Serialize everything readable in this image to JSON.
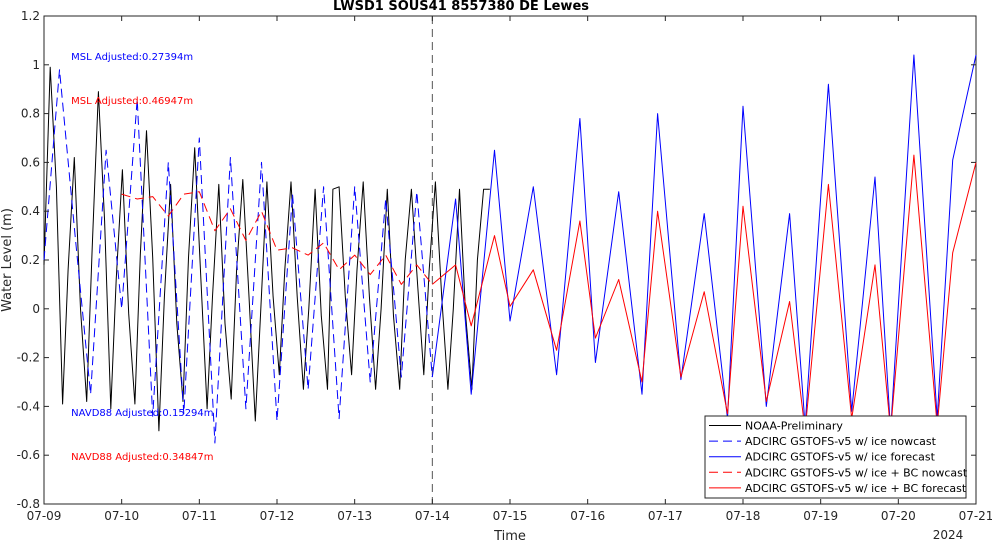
{
  "chart_data": {
    "type": "line",
    "title": "LWSD1 SOUS41 8557380 DE Lewes",
    "xlabel": "Time",
    "ylabel": "Water Level (m)",
    "xlim": [
      0,
      12
    ],
    "ylim": [
      -0.8,
      1.2
    ],
    "x_ticks": [
      0,
      1,
      2,
      3,
      4,
      5,
      6,
      7,
      8,
      9,
      10,
      11,
      12
    ],
    "x_tick_labels": [
      "07-09",
      "07-10",
      "07-11",
      "07-12",
      "07-13",
      "07-14",
      "07-15",
      "07-16",
      "07-17",
      "07-18",
      "07-19",
      "07-20",
      "07-21"
    ],
    "x_year_label": "2024",
    "y_ticks": [
      -0.8,
      -0.6,
      -0.4,
      -0.2,
      0,
      0.2,
      0.4,
      0.6,
      0.8,
      1,
      1.2
    ],
    "y_tick_labels": [
      "-0.8",
      "-0.6",
      "-0.4",
      "-0.2",
      "0",
      "0.2",
      "0.4",
      "0.6",
      "0.8",
      "1",
      "1.2"
    ],
    "nowcast_forecast_split_x": 5,
    "annotations": [
      {
        "text": "MSL Adjusted:0.27394m",
        "color": "#0000ff",
        "x": 0.35,
        "y": 1.02
      },
      {
        "text": "MSL Adjusted:0.46947m",
        "color": "#ff0000",
        "x": 0.35,
        "y": 0.84
      },
      {
        "text": "NAVD88 Adjusted:0.15294m",
        "color": "#0000ff",
        "x": 0.35,
        "y": -0.44
      },
      {
        "text": "NAVD88 Adjusted:0.34847m",
        "color": "#ff0000",
        "x": 0.35,
        "y": -0.62
      }
    ],
    "legend_position": "bottom-right",
    "series": [
      {
        "name": "NOAA-Preliminary",
        "color": "#000000",
        "style": "solid",
        "x": [
          0.0,
          0.08,
          0.16,
          0.24,
          0.31,
          0.39,
          0.47,
          0.55,
          0.62,
          0.7,
          0.78,
          0.86,
          0.93,
          1.01,
          1.09,
          1.17,
          1.24,
          1.32,
          1.4,
          1.48,
          1.55,
          1.63,
          1.71,
          1.79,
          1.86,
          1.94,
          2.02,
          2.1,
          2.17,
          2.25,
          2.33,
          2.41,
          2.48,
          2.56,
          2.64,
          2.72,
          2.79,
          2.87,
          2.95,
          3.03,
          3.1,
          3.18,
          3.26,
          3.34,
          3.41,
          3.49,
          3.57,
          3.65,
          3.72,
          3.8,
          3.88,
          3.96,
          4.03,
          4.11,
          4.19,
          4.27,
          4.34,
          4.42,
          4.5,
          4.58,
          4.65,
          4.73,
          4.81,
          4.89,
          4.96,
          5.04,
          5.12,
          5.2,
          5.27,
          5.35,
          5.43,
          5.51,
          5.58,
          5.66,
          5.74
        ],
        "y": [
          0.18,
          0.99,
          0.5,
          -0.39,
          0.16,
          0.62,
          0.0,
          -0.38,
          0.25,
          0.89,
          0.36,
          -0.41,
          0.12,
          0.57,
          -0.02,
          -0.39,
          0.22,
          0.73,
          0.21,
          -0.5,
          0.05,
          0.51,
          -0.06,
          -0.38,
          0.21,
          0.66,
          0.12,
          -0.41,
          0.05,
          0.51,
          -0.06,
          -0.37,
          0.16,
          0.53,
          0.05,
          -0.46,
          -0.01,
          0.52,
          0.05,
          -0.27,
          0.16,
          0.52,
          0.05,
          -0.33,
          0.0,
          0.49,
          -0.03,
          -0.33,
          0.49,
          0.5,
          0.05,
          -0.27,
          0.16,
          0.52,
          0.05,
          -0.33,
          0.0,
          0.49,
          -0.03,
          -0.33,
          0.2,
          0.49,
          0.1,
          -0.27,
          0.16,
          0.52,
          0.05,
          -0.33,
          0.0,
          0.49,
          -0.03,
          -0.33,
          0.2,
          0.49,
          0.49
        ]
      },
      {
        "name": "ADCIRC GSTOFS-v5 w/ ice nowcast",
        "color": "#0000ff",
        "style": "dashed",
        "x": [
          0.0,
          0.2,
          0.4,
          0.6,
          0.8,
          1.0,
          1.2,
          1.4,
          1.6,
          1.8,
          2.0,
          2.2,
          2.4,
          2.6,
          2.8,
          3.0,
          3.2,
          3.4,
          3.6,
          3.8,
          4.0,
          4.2,
          4.4,
          4.6,
          4.8,
          5.0
        ],
        "y": [
          0.2,
          0.98,
          0.3,
          -0.35,
          0.65,
          0.0,
          0.86,
          -0.44,
          0.6,
          -0.43,
          0.7,
          -0.55,
          0.62,
          -0.41,
          0.6,
          -0.46,
          0.47,
          -0.33,
          0.5,
          -0.45,
          0.5,
          -0.3,
          0.45,
          -0.28,
          0.48,
          -0.28
        ]
      },
      {
        "name": "ADCIRC GSTOFS-v5 w/ ice forecast",
        "color": "#0000ff",
        "style": "solid",
        "x": [
          5.0,
          5.3,
          5.5,
          5.8,
          6.0,
          6.3,
          6.6,
          6.9,
          7.1,
          7.4,
          7.7,
          7.9,
          8.2,
          8.5,
          8.8,
          9.0,
          9.3,
          9.6,
          9.8,
          10.1,
          10.4,
          10.7,
          10.9,
          11.2,
          11.5,
          11.7,
          12.0
        ],
        "y": [
          -0.28,
          0.45,
          -0.35,
          0.65,
          -0.05,
          0.5,
          -0.27,
          0.78,
          -0.22,
          0.48,
          -0.35,
          0.8,
          -0.29,
          0.39,
          -0.45,
          0.83,
          -0.4,
          0.39,
          -0.48,
          0.92,
          -0.42,
          0.54,
          -0.5,
          1.04,
          -0.45,
          0.61,
          1.04
        ]
      },
      {
        "name": "ADCIRC GSTOFS-v5 w/ ice + BC nowcast",
        "color": "#ff0000",
        "style": "dashed",
        "x": [
          1.0,
          1.2,
          1.4,
          1.6,
          1.8,
          2.0,
          2.2,
          2.4,
          2.6,
          2.8,
          3.0,
          3.2,
          3.4,
          3.6,
          3.8,
          4.0,
          4.2,
          4.4,
          4.6,
          4.8,
          5.0
        ],
        "y": [
          0.47,
          0.45,
          0.46,
          0.38,
          0.47,
          0.48,
          0.32,
          0.41,
          0.28,
          0.4,
          0.24,
          0.25,
          0.22,
          0.27,
          0.16,
          0.22,
          0.14,
          0.22,
          0.1,
          0.18,
          0.1
        ]
      },
      {
        "name": "ADCIRC GSTOFS-v5 w/ ice + BC forecast",
        "color": "#ff0000",
        "style": "solid",
        "x": [
          5.0,
          5.3,
          5.5,
          5.8,
          6.0,
          6.3,
          6.6,
          6.9,
          7.1,
          7.4,
          7.7,
          7.9,
          8.2,
          8.5,
          8.8,
          9.0,
          9.3,
          9.6,
          9.8,
          10.1,
          10.4,
          10.7,
          10.9,
          11.2,
          11.5,
          11.7,
          12.0
        ],
        "y": [
          0.1,
          0.18,
          -0.07,
          0.3,
          0.01,
          0.16,
          -0.17,
          0.36,
          -0.12,
          0.12,
          -0.3,
          0.4,
          -0.28,
          0.07,
          -0.43,
          0.42,
          -0.38,
          0.03,
          -0.5,
          0.51,
          -0.45,
          0.18,
          -0.5,
          0.63,
          -0.48,
          0.23,
          0.6
        ]
      }
    ]
  }
}
